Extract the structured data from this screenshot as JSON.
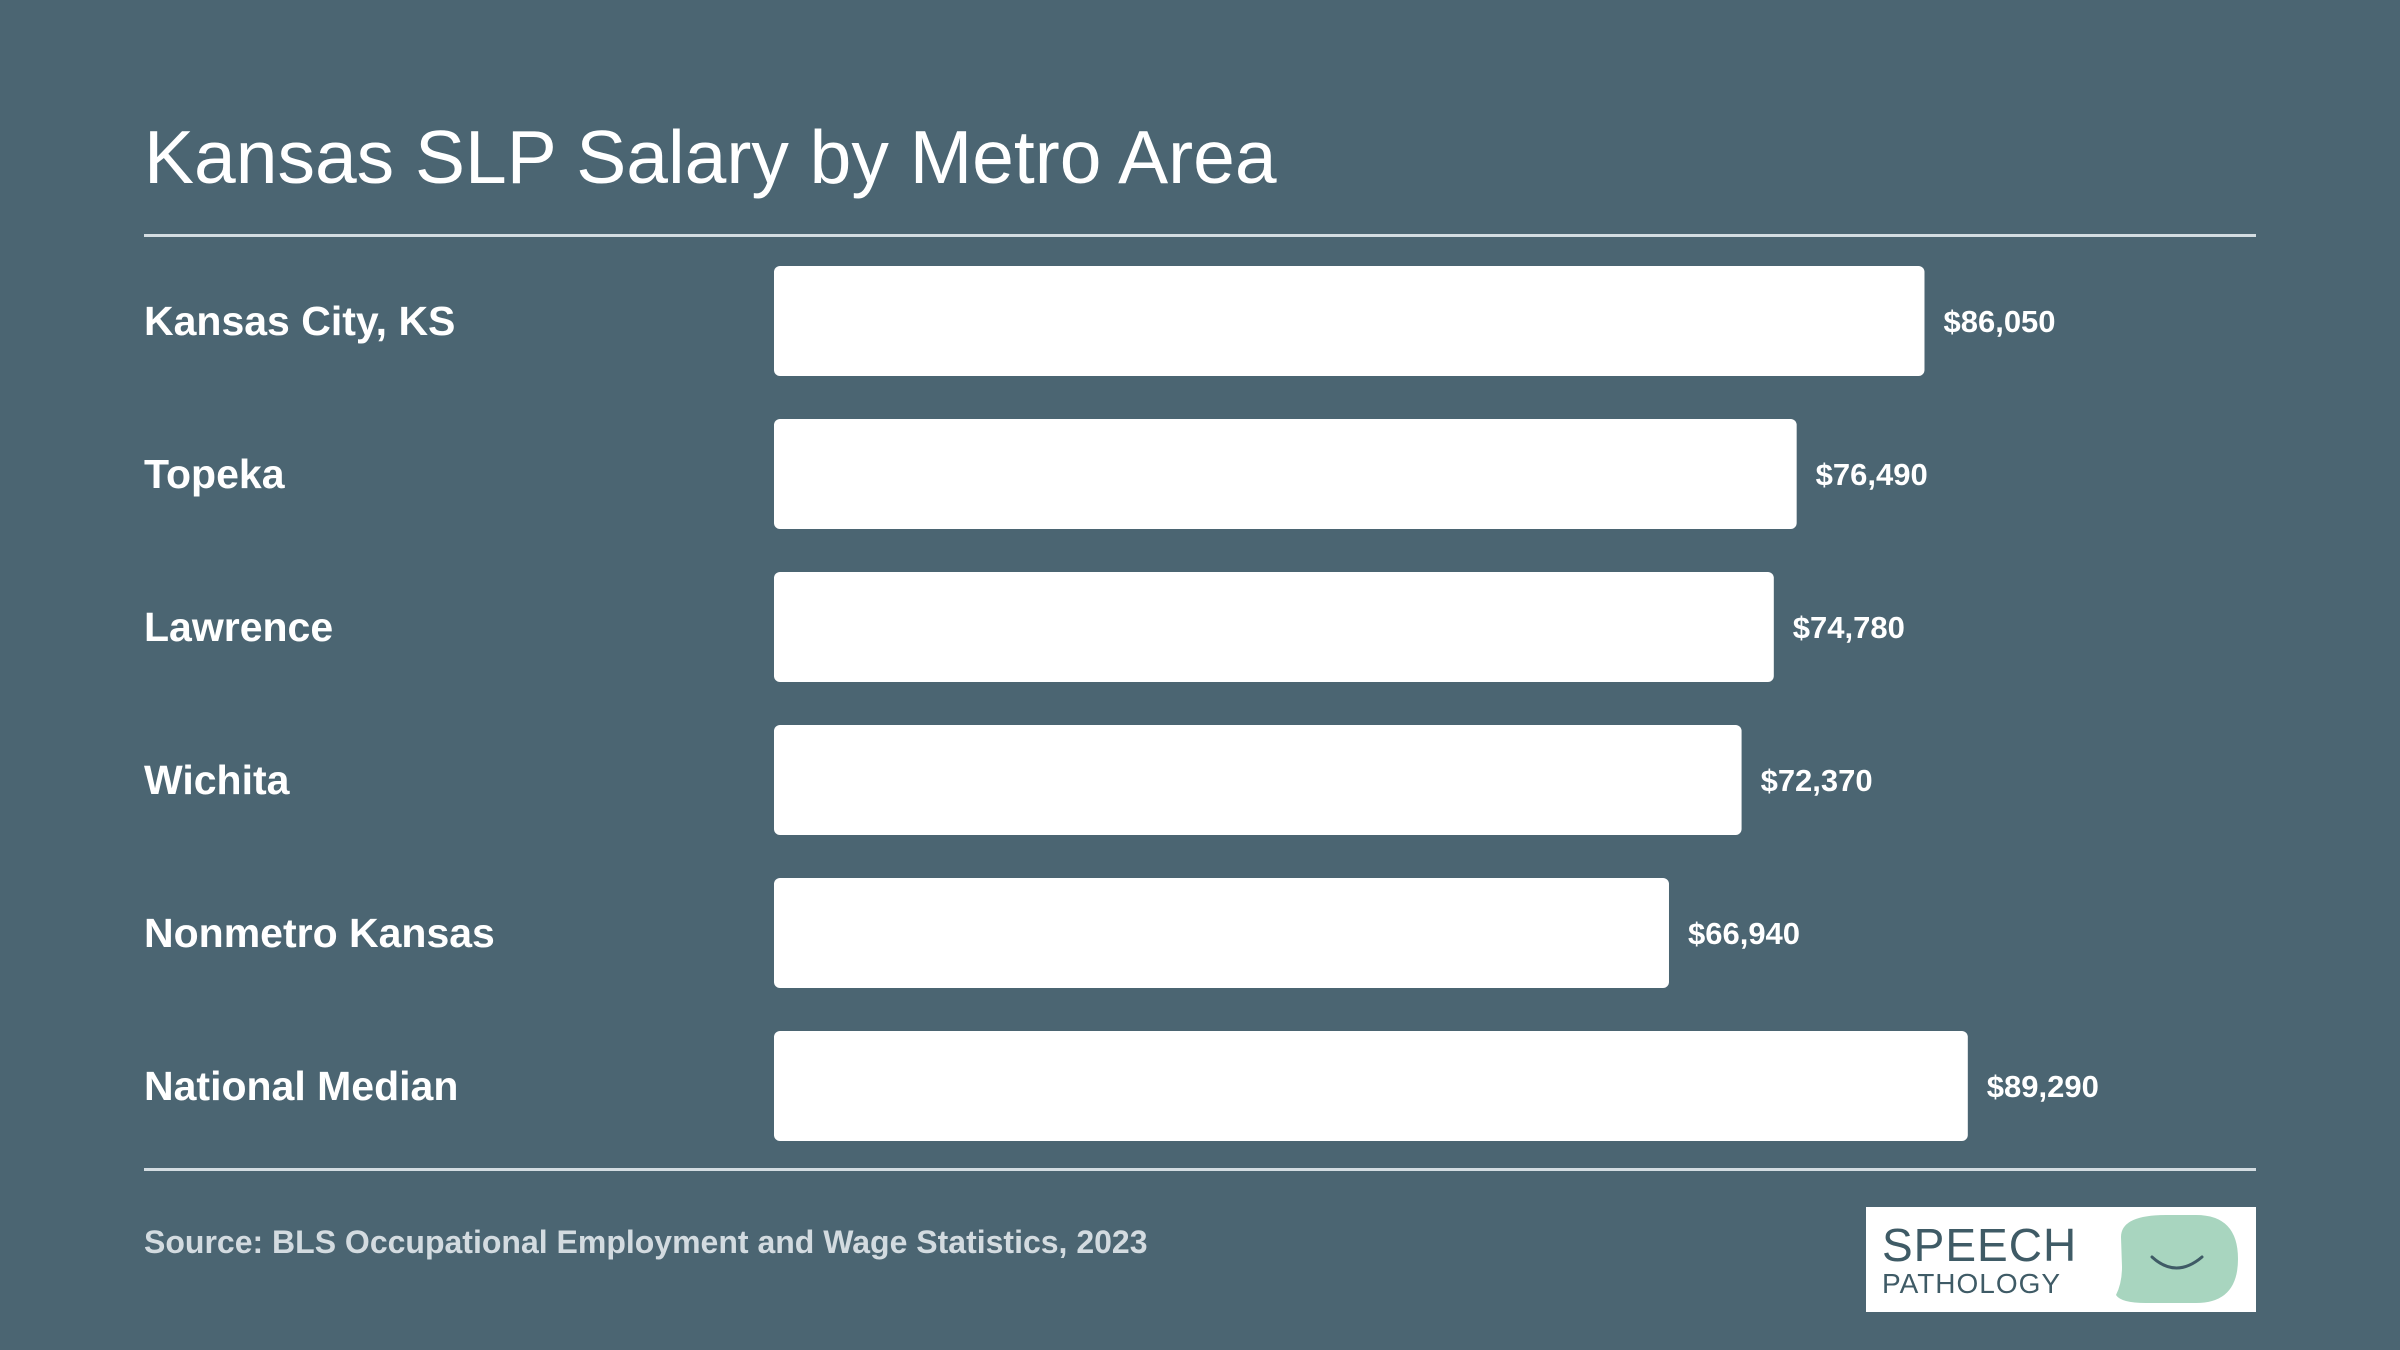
{
  "chart_data": {
    "type": "bar",
    "orientation": "horizontal",
    "title": "Kansas SLP Salary by Metro Area",
    "categories": [
      "Kansas City, KS",
      "Topeka",
      "Lawrence",
      "Wichita",
      "Nonmetro Kansas",
      "National Median"
    ],
    "values": [
      86050,
      76490,
      74780,
      72370,
      66940,
      89290
    ],
    "value_labels": [
      "$86,050",
      "$76,490",
      "$74,780",
      "$72,370",
      "$66,940",
      "$89,290"
    ],
    "xlim": [
      0,
      100000
    ],
    "grid": false,
    "legend": "none",
    "bar_color": "#ffffff"
  },
  "footer": {
    "source": "Source: BLS Occupational Employment and Wage Statistics, 2023"
  },
  "logo": {
    "line1": "SPEECH",
    "line2": "PATHOLOGY",
    "icon": "speech-bubble-smile-icon",
    "accent": "#a8d5bf"
  }
}
